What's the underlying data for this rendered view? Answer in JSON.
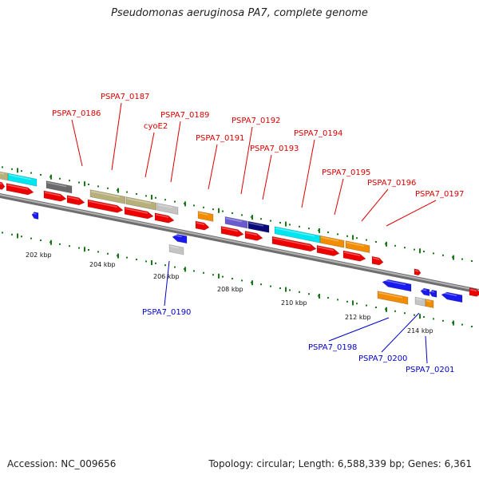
{
  "title": "Pseudomonas aeruginosa PA7, complete genome",
  "footer": {
    "accession": "Accession: NC_009656",
    "topology": "Topology: circular; Length: 6,588,339 bp; Genes: 6,361"
  },
  "colors": {
    "forward_label": "#dd0000",
    "reverse_label": "#0000cc",
    "tick": "#1a7a1a",
    "backbone": "#888888",
    "gene_red": "#ee0000",
    "gene_blue": "#1a1aee",
    "gene_orange": "#f28c00",
    "gene_cyan": "#00e6f0",
    "gene_olive": "#b8b07a",
    "gene_gray": "#c4c4c4",
    "gene_darkgray": "#6a6a6a",
    "gene_navy": "#0a0a7a",
    "gene_purple": "#6a5acd"
  },
  "scale_labels": [
    "202 kbp",
    "204 kbp",
    "206 kbp",
    "208 kbp",
    "210 kbp",
    "212 kbp",
    "214 kbp"
  ],
  "forward_gene_labels": [
    "PSPA7_0186",
    "PSPA7_0187",
    "cyoE2",
    "PSPA7_0189",
    "PSPA7_0191",
    "PSPA7_0192",
    "PSPA7_0193",
    "PSPA7_0194",
    "PSPA7_0195",
    "PSPA7_0196",
    "PSPA7_0197"
  ],
  "reverse_gene_labels": [
    "PSPA7_0190",
    "PSPA7_0198",
    "PSPA7_0200",
    "PSPA7_0201"
  ]
}
